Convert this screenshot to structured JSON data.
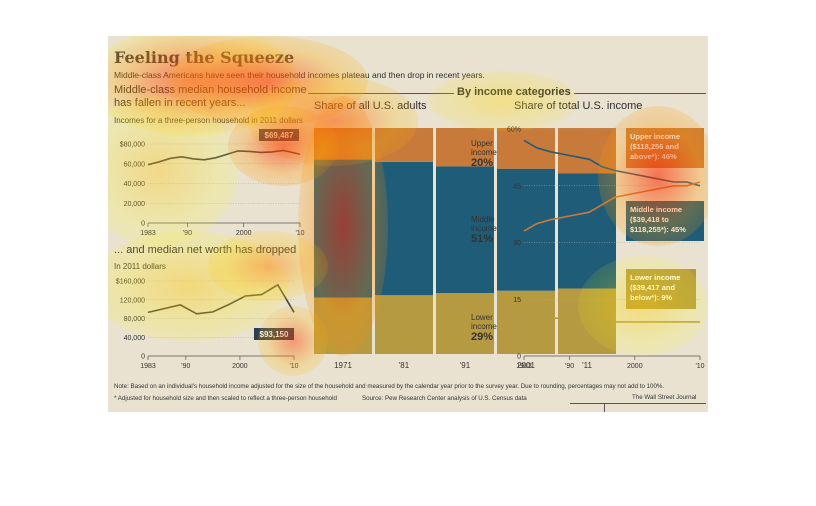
{
  "title": "Feeling the Squeeze",
  "subtitle": "Middle-class Americans have seen their household incomes plateau and then drop in recent years.",
  "left": {
    "heading": "Middle-class median household income has fallen in recent years...",
    "note": "Incomes for a three-person household in 2011 dollars",
    "heading2": "... and median net worth has dropped",
    "note2": "In 2011 dollars"
  },
  "center_header": "By income categories",
  "share_adults_title": "Share of all U.S. adults",
  "share_income_title": "Share of total U.S. income",
  "footer": {
    "note1": "Note: Based on an individual's household income adjusted for the size of the household and measured by the calendar year prior to the survey year. Due to rounding, percentages may not add to 100%.",
    "note2": "* Adjusted for household size and then scaled to reflect a three-person household",
    "source": "Source: Pew Research Center analysis of U.S. Census data",
    "credit": "The Wall Street Journal"
  },
  "colors": {
    "background": "#e9e2d0",
    "upper": "#c87a3a",
    "middle": "#1f5c78",
    "lower": "#b59a42",
    "line": "#444444",
    "label_box": "#2e3f55"
  },
  "chart_data": [
    {
      "type": "line",
      "title": "Middle-class median household income has fallen in recent years...",
      "ylabel": "Incomes for a three-person household in 2011 dollars",
      "x": [
        1983,
        1985,
        1987,
        1989,
        1991,
        1993,
        1995,
        1997,
        1999,
        2001,
        2003,
        2005,
        2007,
        2009,
        2010
      ],
      "values": [
        59000,
        62000,
        65500,
        67000,
        65000,
        64000,
        66000,
        69500,
        73000,
        72500,
        71500,
        72000,
        73500,
        71000,
        69487
      ],
      "ylim": [
        0,
        80000
      ],
      "yticks": [
        "0",
        "20,000",
        "40,000",
        "60,000",
        "$80,000"
      ],
      "xticks": [
        "1983",
        "'90",
        "2000",
        "'10"
      ],
      "callout": "$69,487"
    },
    {
      "type": "line",
      "title": "... and median net worth has dropped",
      "ylabel": "In 2011 dollars",
      "x": [
        1983,
        1989,
        1992,
        1995,
        1998,
        2001,
        2004,
        2007,
        2010
      ],
      "values": [
        93000,
        109000,
        90000,
        94000,
        110000,
        128000,
        131000,
        152000,
        93150
      ],
      "ylim": [
        0,
        160000
      ],
      "yticks": [
        "0",
        "40,000",
        "80,000",
        "120,000",
        "$160,000"
      ],
      "xticks": [
        "1983",
        "'90",
        "2000",
        "'10"
      ],
      "callout": "$93,150"
    },
    {
      "type": "bar",
      "stacked": true,
      "title": "Share of all U.S. adults",
      "categories": [
        "1971",
        "'81",
        "'91",
        "2001",
        "'11"
      ],
      "series": [
        {
          "name": "Lower income",
          "values": [
            25,
            26,
            27,
            28,
            29
          ]
        },
        {
          "name": "Middle income",
          "values": [
            61,
            59,
            56,
            54,
            51
          ]
        },
        {
          "name": "Upper income",
          "values": [
            14,
            15,
            17,
            18,
            20
          ]
        }
      ],
      "labels": [
        {
          "name": "Upper",
          "sub": "income",
          "pct": "20%"
        },
        {
          "name": "Middle",
          "sub": "income",
          "pct": "51%"
        },
        {
          "name": "Lower",
          "sub": "income",
          "pct": "29%"
        }
      ]
    },
    {
      "type": "line",
      "title": "Share of total U.S. income",
      "x": [
        1983,
        1985,
        1987,
        1990,
        1993,
        1995,
        1997,
        2000,
        2003,
        2006,
        2008,
        2010
      ],
      "series": [
        {
          "name": "Middle income ($39,418 to $118,255*): 45%",
          "values": [
            57,
            55,
            54,
            53,
            52,
            50,
            49,
            48,
            47,
            46,
            46,
            45
          ]
        },
        {
          "name": "Upper income ($118,256 and above*): 46%",
          "values": [
            33,
            35,
            36,
            37,
            38,
            40,
            42,
            43,
            44,
            45,
            45,
            46
          ]
        },
        {
          "name": "Lower income ($39,417 and below*): 9%",
          "values": [
            10,
            10,
            10,
            10,
            9,
            9,
            9,
            9,
            9,
            9,
            9,
            9
          ]
        }
      ],
      "ylim": [
        0,
        60
      ],
      "yticks": [
        "0",
        "15",
        "30",
        "45",
        "60%"
      ],
      "xticks": [
        "1983",
        "'90",
        "2000",
        "'10"
      ],
      "callouts": [
        {
          "line1": "Upper income",
          "line2": "($118,256 and",
          "line3": "above*): 46%"
        },
        {
          "line1": "Middle income",
          "line2": "($39,418 to",
          "line3": "$118,255*): 45%"
        },
        {
          "line1": "Lower income",
          "line2": "($39,417 and",
          "line3": "below*): 9%"
        }
      ]
    }
  ]
}
